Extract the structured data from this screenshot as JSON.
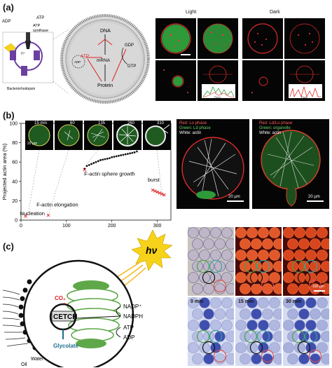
{
  "panels": {
    "a": {
      "label": "(a)",
      "schematic": {
        "adp": "ADP",
        "atp_left": "ATP",
        "atp_synthase_line1": "ATP",
        "atp_synthase_line2": "synthase",
        "bacteriorhodopsin": "Bacteriorhodopsin",
        "proton": "H⁺",
        "dna": "DNA",
        "mrna": "mRNA",
        "protein": "Protein",
        "gdp": "GDP",
        "gtp": "GTP",
        "atp_red": "ATP",
        "adp_inner": "ADP"
      },
      "micro": {
        "light_label": "Light",
        "dark_label": "Dark",
        "plot_xlabel": "Pixel"
      }
    },
    "b": {
      "label": "(b)",
      "chart_data": {
        "type": "scatter",
        "title": "",
        "xlabel": "Time (min)",
        "ylabel": "Projected actin area (%)",
        "xlim": [
          0,
          330
        ],
        "ylim": [
          0,
          100
        ],
        "xticks": [
          "0",
          "100",
          "200",
          "300"
        ],
        "yticks": [
          "0",
          "20",
          "40",
          "60",
          "80",
          "100"
        ],
        "annotations": [
          "Nucleation",
          "F-actin elongation",
          "F-actin sphere growth",
          "burst"
        ],
        "series": [
          {
            "color": "#111111",
            "x": [
              140,
              145,
              150,
              155,
              160,
              165,
              170,
              175,
              180,
              185,
              190,
              195,
              200,
              205,
              210,
              215,
              220,
              225,
              230,
              235,
              240,
              245,
              250,
              255
            ],
            "y": [
              53,
              56,
              57,
              58,
              59,
              60,
              61,
              62,
              62.5,
              63,
              63.5,
              64,
              65,
              65.5,
              66,
              66.5,
              67,
              67.5,
              68,
              68.5,
              69,
              69.5,
              70,
              71
            ]
          },
          {
            "color": "#dd2222",
            "x": [
              10,
              60,
              140,
              290,
              295,
              300,
              305,
              310,
              315
            ],
            "y": [
              4,
              5,
              52,
              31,
              30,
              29,
              28,
              27,
              26
            ]
          }
        ]
      },
      "time_labels": [
        "15 min",
        "60",
        "135",
        "260",
        "310"
      ],
      "scale_20um": "20 μm",
      "micro_right1": {
        "line1": "Red: Lo phase",
        "line2": "Green: Ld phase",
        "line3": "White: actin",
        "scale": "20 μm"
      },
      "micro_right2": {
        "line1": "Red: Ld/Lo phase",
        "line2": "Green: organelle",
        "line3": "White: actin",
        "scale": "20 μm"
      }
    },
    "c": {
      "label": "(c)",
      "hv": "hν",
      "co2": "CO₂",
      "cetch": "CETCH",
      "nadp": "NADP⁺",
      "nadph": "NADPH",
      "atp": "ATP",
      "adp": "ADP",
      "glycolate": "Glycolate",
      "water": "Water",
      "oil": "Oil",
      "scale_100um": "100 μm",
      "time_labels": [
        "0 min",
        "15 min",
        "30 min"
      ]
    }
  },
  "colors": {
    "membrane_gray": "#8c8c8c",
    "actin_red": "#dd2222",
    "chloroplast_green": "#5fa84a",
    "sun_yellow": "#f6d21a",
    "droplet_blue": "#3f4fae"
  }
}
